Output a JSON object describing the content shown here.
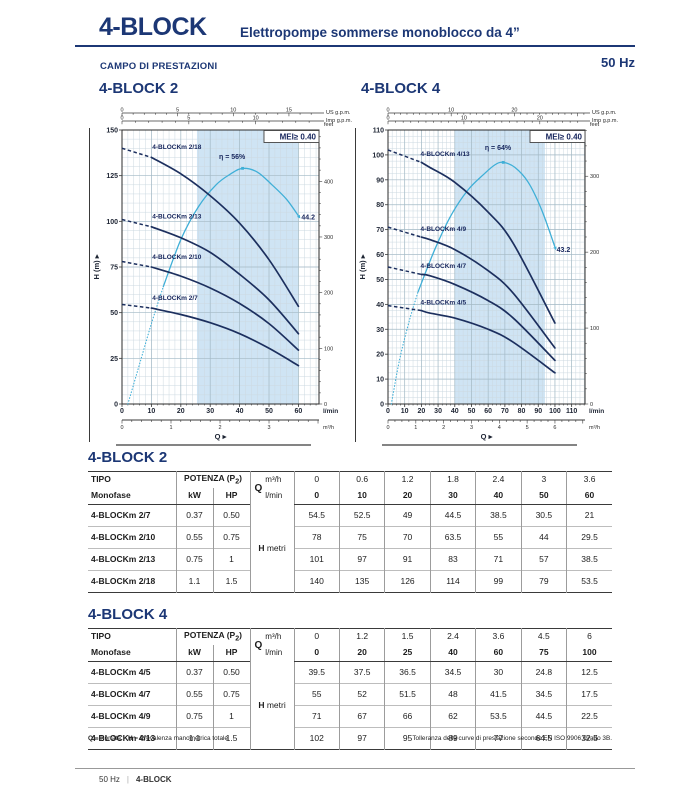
{
  "page": {
    "header": {
      "title": "4-BLOCK",
      "subtitle": "Elettropompe sommerse monoblocco da 4”"
    },
    "section_label": "CAMPO DI PRESTAZIONI",
    "frequency": "50 Hz",
    "footnote": {
      "q_sym": "Q",
      "q_text": " = Portata",
      "h_sym": "H",
      "h_text": " = Prevalenza manometrica totale",
      "right": "Tolleranza delle curve di prestazione secondo EN ISO 9906 Grado 3B."
    },
    "footer": {
      "left": "50 Hz",
      "divider": "|",
      "right": "4-BLOCK"
    }
  },
  "colors": {
    "navy": "#1c3775",
    "curve": "#1c2f5e",
    "efficiency": "#3fafd7",
    "band": "#cfe4f4",
    "grid_minor": "#ccd9e1",
    "grid_major": "#a4bac6",
    "axis": "#3a3a3a",
    "border": "#2b2b2b"
  },
  "chart_data": [
    {
      "type": "line",
      "title": "4-BLOCK 2",
      "mei_label": "MEI≥ 0.40",
      "xlabel": "Q",
      "ylabel": "H (m)",
      "ylim": [
        0,
        150
      ],
      "y_axis": {
        "label": "H (m)",
        "max": 150,
        "major": 25,
        "minor": 5
      },
      "x_axis": {
        "label": "Q",
        "unit": "l/min",
        "ticks_max": 60,
        "axis_max": 67,
        "major": 10,
        "minor": 2
      },
      "m3h_axis": {
        "unit": "m³/h",
        "ticks": [
          0,
          1,
          2,
          3
        ],
        "minor": 0.2,
        "lpm_per_unit": 16.6667
      },
      "top_scales": [
        {
          "unit": "US g.p.m.",
          "lpm_per_unit": 3.785,
          "major": 5,
          "minor": 1
        },
        {
          "unit": "Imp g.p.m.",
          "lpm_per_unit": 4.546,
          "major": 5,
          "minor": 1
        }
      ],
      "feet_axis": {
        "unit": "feet",
        "major": 100,
        "minor": 20,
        "m_per_unit": 0.3048
      },
      "band": [
        25.5,
        60
      ],
      "series": [
        {
          "name": "4-BLOCKm 2/18",
          "label_at": [
            10.3,
            139.5
          ],
          "points": [
            [
              0,
              140
            ],
            [
              10,
              135
            ],
            [
              20,
              126
            ],
            [
              30,
              114
            ],
            [
              40,
              99
            ],
            [
              50,
              79
            ],
            [
              60,
              53.5
            ]
          ]
        },
        {
          "name": "4-BLOCKm 2/13",
          "label_at": [
            10.3,
            101.5
          ],
          "points": [
            [
              0,
              101
            ],
            [
              10,
              97
            ],
            [
              20,
              91
            ],
            [
              30,
              83
            ],
            [
              40,
              71
            ],
            [
              50,
              57
            ],
            [
              60,
              38.5
            ]
          ]
        },
        {
          "name": "4-BLOCKm 2/10",
          "label_at": [
            10.3,
            79.5
          ],
          "points": [
            [
              0,
              78
            ],
            [
              10,
              75
            ],
            [
              20,
              70
            ],
            [
              30,
              63.5
            ],
            [
              40,
              55
            ],
            [
              50,
              44
            ],
            [
              60,
              29.5
            ]
          ]
        },
        {
          "name": "4-BLOCKm 2/7",
          "label_at": [
            10.3,
            57
          ],
          "points": [
            [
              0,
              54.5
            ],
            [
              10,
              52.5
            ],
            [
              20,
              49
            ],
            [
              30,
              44.5
            ],
            [
              40,
              38.5
            ],
            [
              50,
              30.5
            ],
            [
              60,
              21
            ]
          ]
        }
      ],
      "efficiency": {
        "dotted": [
          [
            2,
            0
          ],
          [
            6,
            22
          ],
          [
            10,
            44
          ],
          [
            14,
            64
          ]
        ],
        "solid": [
          [
            14,
            64
          ],
          [
            20,
            90
          ],
          [
            26,
            108
          ],
          [
            32,
            120
          ],
          [
            37,
            126
          ],
          [
            41,
            129
          ],
          [
            46,
            127
          ],
          [
            51,
            120
          ],
          [
            56,
            112
          ],
          [
            60,
            103
          ]
        ],
        "peak": [
          41,
          129
        ],
        "peak_label": "η = 56%",
        "peak_label_at": [
          33,
          134
        ],
        "end_label": "44.2",
        "end_label_at": [
          61,
          101
        ]
      }
    },
    {
      "type": "line",
      "title": "4-BLOCK 4",
      "mei_label": "MEI≥ 0.40",
      "xlabel": "Q",
      "ylabel": "H (m)",
      "ylim": [
        0,
        110
      ],
      "y_axis": {
        "label": "H (m)",
        "max": 110,
        "major": 10,
        "minor": 2.5
      },
      "x_axis": {
        "label": "Q",
        "unit": "l/min",
        "ticks_max": 110,
        "axis_max": 118,
        "major": 10,
        "minor": 2.5
      },
      "m3h_axis": {
        "unit": "m³/h",
        "ticks": [
          0,
          1,
          2,
          3,
          4,
          5,
          6
        ],
        "minor": 0.25,
        "lpm_per_unit": 16.6667
      },
      "top_scales": [
        {
          "unit": "US g.p.m.",
          "lpm_per_unit": 3.785,
          "major": 10,
          "minor": 1
        },
        {
          "unit": "Imp g.p.m.",
          "lpm_per_unit": 4.546,
          "major": 10,
          "minor": 1
        }
      ],
      "feet_axis": {
        "unit": "feet",
        "major": 100,
        "minor": 20,
        "m_per_unit": 0.3048
      },
      "band": [
        40,
        94
      ],
      "series": [
        {
          "name": "4-BLOCKm 4/13",
          "label_at": [
            19.5,
            99.5
          ],
          "points": [
            [
              0,
              102
            ],
            [
              20,
              97
            ],
            [
              25,
              95
            ],
            [
              40,
              89
            ],
            [
              60,
              77
            ],
            [
              75,
              64.5
            ],
            [
              100,
              32.5
            ]
          ]
        },
        {
          "name": "4-BLOCKm 4/9",
          "label_at": [
            19.5,
            69.5
          ],
          "points": [
            [
              0,
              71
            ],
            [
              20,
              67
            ],
            [
              25,
              66
            ],
            [
              40,
              62
            ],
            [
              60,
              53.5
            ],
            [
              75,
              44.5
            ],
            [
              100,
              22.5
            ]
          ]
        },
        {
          "name": "4-BLOCKm 4/7",
          "label_at": [
            19.5,
            54.5
          ],
          "points": [
            [
              0,
              55
            ],
            [
              20,
              52
            ],
            [
              25,
              51.5
            ],
            [
              40,
              48
            ],
            [
              60,
              41.5
            ],
            [
              75,
              34.5
            ],
            [
              100,
              17.5
            ]
          ]
        },
        {
          "name": "4-BLOCKm 4/5",
          "label_at": [
            19.5,
            40
          ],
          "points": [
            [
              0,
              39.5
            ],
            [
              20,
              37.5
            ],
            [
              25,
              36.5
            ],
            [
              40,
              34.5
            ],
            [
              60,
              30
            ],
            [
              75,
              24.8
            ],
            [
              100,
              12.5
            ]
          ]
        }
      ],
      "efficiency": {
        "dotted": [
          [
            2,
            0
          ],
          [
            7,
            18
          ],
          [
            13,
            34
          ],
          [
            18,
            45
          ]
        ],
        "solid": [
          [
            18,
            45
          ],
          [
            28,
            62
          ],
          [
            38,
            76
          ],
          [
            48,
            86
          ],
          [
            57,
            92
          ],
          [
            64,
            96
          ],
          [
            69,
            97
          ],
          [
            76,
            95
          ],
          [
            84,
            89
          ],
          [
            92,
            78
          ],
          [
            100,
            63
          ]
        ],
        "peak": [
          69,
          97
        ],
        "peak_label": "η = 64%",
        "peak_label_at": [
          58,
          102
        ],
        "end_label": "43.2",
        "end_label_at": [
          101,
          61
        ]
      }
    }
  ],
  "tables": [
    {
      "title": "4-BLOCK 2",
      "col1_header": "TIPO",
      "col1_sub": "Monofase",
      "power_header": "POTENZA (P",
      "power_sub": "2",
      "power_close": ")",
      "kw": "kW",
      "hp": "HP",
      "q_label": "Q",
      "m3h_label": "m³/h",
      "lmin_label": "l/min",
      "h_label": "H",
      "h_unit": "metri",
      "m3h_values": [
        "0",
        "0.6",
        "1.2",
        "1.8",
        "2.4",
        "3",
        "3.6"
      ],
      "lmin_values": [
        "0",
        "10",
        "20",
        "30",
        "40",
        "50",
        "60"
      ],
      "rows": [
        {
          "name": "4-BLOCKm 2/7",
          "kw": "0.37",
          "hp": "0.50",
          "values": [
            "54.5",
            "52.5",
            "49",
            "44.5",
            "38.5",
            "30.5",
            "21"
          ]
        },
        {
          "name": "4-BLOCKm 2/10",
          "kw": "0.55",
          "hp": "0.75",
          "values": [
            "78",
            "75",
            "70",
            "63.5",
            "55",
            "44",
            "29.5"
          ]
        },
        {
          "name": "4-BLOCKm 2/13",
          "kw": "0.75",
          "hp": "1",
          "values": [
            "101",
            "97",
            "91",
            "83",
            "71",
            "57",
            "38.5"
          ]
        },
        {
          "name": "4-BLOCKm 2/18",
          "kw": "1.1",
          "hp": "1.5",
          "values": [
            "140",
            "135",
            "126",
            "114",
            "99",
            "79",
            "53.5"
          ]
        }
      ]
    },
    {
      "title": "4-BLOCK 4",
      "col1_header": "TIPO",
      "col1_sub": "Monofase",
      "power_header": "POTENZA (P",
      "power_sub": "2",
      "power_close": ")",
      "kw": "kW",
      "hp": "HP",
      "q_label": "Q",
      "m3h_label": "m³/h",
      "lmin_label": "l/min",
      "h_label": "H",
      "h_unit": "metri",
      "m3h_values": [
        "0",
        "1.2",
        "1.5",
        "2.4",
        "3.6",
        "4.5",
        "6"
      ],
      "lmin_values": [
        "0",
        "20",
        "25",
        "40",
        "60",
        "75",
        "100"
      ],
      "rows": [
        {
          "name": "4-BLOCKm 4/5",
          "kw": "0.37",
          "hp": "0.50",
          "values": [
            "39.5",
            "37.5",
            "36.5",
            "34.5",
            "30",
            "24.8",
            "12.5"
          ]
        },
        {
          "name": "4-BLOCKm 4/7",
          "kw": "0.55",
          "hp": "0.75",
          "values": [
            "55",
            "52",
            "51.5",
            "48",
            "41.5",
            "34.5",
            "17.5"
          ]
        },
        {
          "name": "4-BLOCKm 4/9",
          "kw": "0.75",
          "hp": "1",
          "values": [
            "71",
            "67",
            "66",
            "62",
            "53.5",
            "44.5",
            "22.5"
          ]
        },
        {
          "name": "4-BLOCKm 4/13",
          "kw": "1.1",
          "hp": "1.5",
          "values": [
            "102",
            "97",
            "95",
            "89",
            "77",
            "64.5",
            "32.5"
          ]
        }
      ]
    }
  ]
}
